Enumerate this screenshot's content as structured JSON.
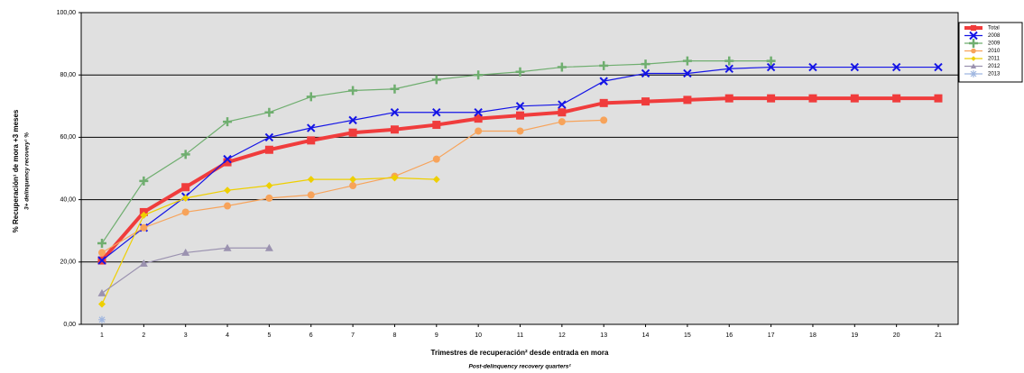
{
  "chart_data": {
    "type": "line",
    "y_label": "% Recuperación¹ de mora +3 meses",
    "y_sublabel": "3+ delinquency recovery¹ %",
    "x_label": "Trimestres de recuperación² desde entrada en mora",
    "x_sublabel": "Post-delinquency recovery quarters²",
    "categories": [
      "1",
      "2",
      "3",
      "4",
      "5",
      "6",
      "7",
      "8",
      "9",
      "10",
      "11",
      "12",
      "13",
      "14",
      "15",
      "16",
      "17",
      "18",
      "19",
      "20",
      "21"
    ],
    "ylim": [
      0,
      100
    ],
    "yticks": [
      {
        "value": 0,
        "label": "0,00"
      },
      {
        "value": 20,
        "label": "20,00"
      },
      {
        "value": 40,
        "label": "40,00"
      },
      {
        "value": 60,
        "label": "60,00"
      },
      {
        "value": 80,
        "label": "80,00"
      },
      {
        "value": 100,
        "label": "100,00"
      }
    ],
    "grid": true,
    "legend": "right",
    "series": [
      {
        "name": "Total",
        "color": "#f03c3c",
        "marker": "square",
        "values": [
          20.5,
          36,
          44,
          52,
          56,
          59,
          61.5,
          62.5,
          64,
          66,
          67,
          68,
          71,
          71.5,
          72,
          72.5,
          72.5,
          72.5,
          72.5,
          72.5,
          72.5
        ]
      },
      {
        "name": "2008",
        "color": "#1414e6",
        "marker": "x",
        "values": [
          20.5,
          31,
          41,
          53,
          60,
          63,
          65.5,
          68,
          68,
          68,
          70,
          70.5,
          78,
          80.5,
          80.5,
          82,
          82.5,
          82.5,
          82.5,
          82.5,
          82.5
        ]
      },
      {
        "name": "2009",
        "color": "#6fae6f",
        "marker": "plus",
        "values": [
          26,
          46,
          54.5,
          65,
          68,
          73,
          75,
          75.5,
          78.5,
          80,
          81,
          82.5,
          83,
          83.5,
          84.5,
          84.5,
          84.5,
          null,
          null,
          null,
          null
        ]
      },
      {
        "name": "2010",
        "color": "#f7a35a",
        "marker": "circle",
        "values": [
          23,
          31,
          36,
          38,
          40.5,
          41.5,
          44.5,
          47.5,
          53,
          62,
          62,
          65,
          65.5,
          null,
          null,
          null,
          null,
          null,
          null,
          null,
          null
        ]
      },
      {
        "name": "2011",
        "color": "#eecf00",
        "marker": "diamond",
        "values": [
          6.5,
          35,
          40.5,
          43,
          44.5,
          46.5,
          46.5,
          47,
          46.5,
          null,
          null,
          null,
          null,
          null,
          null,
          null,
          null,
          null,
          null,
          null,
          null
        ]
      },
      {
        "name": "2012",
        "color": "#9b92b0",
        "marker": "triangle",
        "values": [
          10,
          19.5,
          23,
          24.5,
          24.5,
          null,
          null,
          null,
          null,
          null,
          null,
          null,
          null,
          null,
          null,
          null,
          null,
          null,
          null,
          null,
          null
        ]
      },
      {
        "name": "2013",
        "color": "#9fb6e0",
        "marker": "star",
        "values": [
          1.5,
          null,
          null,
          null,
          null,
          null,
          null,
          null,
          null,
          null,
          null,
          null,
          null,
          null,
          null,
          null,
          null,
          null,
          null,
          null,
          null
        ]
      }
    ]
  }
}
